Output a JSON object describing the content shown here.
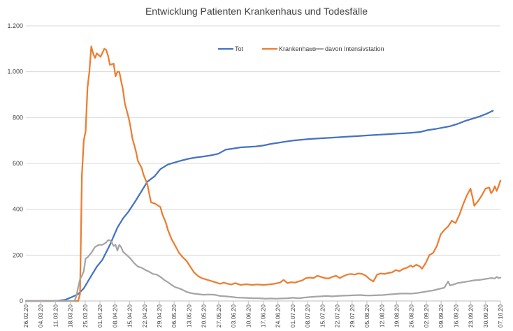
{
  "chart_data": {
    "type": "line",
    "title": "Entwicklung Patienten Krankenhaus und Todesfälle",
    "xlabel": "",
    "ylabel": "",
    "ylim": [
      0,
      1200
    ],
    "y_ticks": [
      0,
      200,
      400,
      600,
      800,
      1000,
      1200
    ],
    "y_tick_labels": [
      "0",
      "200",
      "400",
      "600",
      "800",
      "1.000",
      "1.200"
    ],
    "x_tick_labels": [
      "26.02.20",
      "04.03.20",
      "11.03.20",
      "18.03.20",
      "25.03.20",
      "01.04.20",
      "08.04.20",
      "15.04.20",
      "22.04.20",
      "29.04.20",
      "06.05.20",
      "13.05.20",
      "20.05.20",
      "27.05.20",
      "03.06.20",
      "10.06.20",
      "17.06.20",
      "24.06.20",
      "01.07.20",
      "08.07.20",
      "15.07.20",
      "22.07.20",
      "29.07.20",
      "05.08.20",
      "12.08.20",
      "19.08.20",
      "26.08.20",
      "02.09.20",
      "09.09.20",
      "16.09.20",
      "23.09.20",
      "30.09.20",
      "07.10.20"
    ],
    "grid": true,
    "legend_position": "top-center",
    "series": [
      {
        "name": "Tot",
        "color": "#4472C4",
        "points": [
          [
            0,
            0
          ],
          [
            7,
            0
          ],
          [
            14,
            0
          ],
          [
            17,
            1
          ],
          [
            21,
            5
          ],
          [
            24,
            15
          ],
          [
            28,
            30
          ],
          [
            31,
            55
          ],
          [
            35,
            110
          ],
          [
            38,
            150
          ],
          [
            41,
            180
          ],
          [
            45,
            245
          ],
          [
            49,
            320
          ],
          [
            52,
            360
          ],
          [
            55,
            390
          ],
          [
            59,
            440
          ],
          [
            62,
            480
          ],
          [
            65,
            520
          ],
          [
            69,
            545
          ],
          [
            72,
            575
          ],
          [
            76,
            595
          ],
          [
            80,
            605
          ],
          [
            83,
            612
          ],
          [
            87,
            620
          ],
          [
            91,
            626
          ],
          [
            95,
            630
          ],
          [
            99,
            635
          ],
          [
            103,
            642
          ],
          [
            107,
            660
          ],
          [
            111,
            665
          ],
          [
            115,
            670
          ],
          [
            119,
            672
          ],
          [
            123,
            674
          ],
          [
            127,
            678
          ],
          [
            131,
            685
          ],
          [
            135,
            690
          ],
          [
            139,
            695
          ],
          [
            143,
            700
          ],
          [
            147,
            703
          ],
          [
            151,
            706
          ],
          [
            155,
            708
          ],
          [
            159,
            710
          ],
          [
            163,
            712
          ],
          [
            167,
            714
          ],
          [
            171,
            716
          ],
          [
            175,
            718
          ],
          [
            179,
            720
          ],
          [
            183,
            722
          ],
          [
            187,
            724
          ],
          [
            191,
            726
          ],
          [
            195,
            728
          ],
          [
            199,
            730
          ],
          [
            203,
            732
          ],
          [
            207,
            734
          ],
          [
            211,
            737
          ],
          [
            215,
            745
          ],
          [
            219,
            750
          ],
          [
            223,
            756
          ],
          [
            227,
            762
          ],
          [
            231,
            772
          ],
          [
            235,
            785
          ],
          [
            239,
            795
          ],
          [
            243,
            805
          ],
          [
            247,
            818
          ],
          [
            250,
            830
          ]
        ]
      },
      {
        "name": "Krankenhaus",
        "color": "#ED7D31",
        "points": [
          [
            0,
            0
          ],
          [
            28,
            0
          ],
          [
            29,
            30
          ],
          [
            30,
            550
          ],
          [
            31,
            700
          ],
          [
            32,
            740
          ],
          [
            33,
            930
          ],
          [
            34,
            1000
          ],
          [
            35,
            1110
          ],
          [
            36,
            1080
          ],
          [
            37,
            1060
          ],
          [
            38,
            1080
          ],
          [
            40,
            1065
          ],
          [
            42,
            1100
          ],
          [
            43,
            1095
          ],
          [
            44,
            1070
          ],
          [
            45,
            1030
          ],
          [
            47,
            1035
          ],
          [
            48,
            980
          ],
          [
            49,
            1000
          ],
          [
            50,
            1000
          ],
          [
            51,
            960
          ],
          [
            52,
            920
          ],
          [
            53,
            860
          ],
          [
            55,
            800
          ],
          [
            56,
            760
          ],
          [
            57,
            710
          ],
          [
            59,
            650
          ],
          [
            60,
            610
          ],
          [
            62,
            580
          ],
          [
            63,
            550
          ],
          [
            65,
            510
          ],
          [
            66,
            470
          ],
          [
            67,
            430
          ],
          [
            69,
            425
          ],
          [
            70,
            420
          ],
          [
            72,
            410
          ],
          [
            73,
            380
          ],
          [
            75,
            340
          ],
          [
            76,
            310
          ],
          [
            78,
            270
          ],
          [
            80,
            240
          ],
          [
            82,
            210
          ],
          [
            84,
            190
          ],
          [
            86,
            175
          ],
          [
            88,
            150
          ],
          [
            90,
            125
          ],
          [
            92,
            110
          ],
          [
            94,
            100
          ],
          [
            96,
            95
          ],
          [
            98,
            90
          ],
          [
            100,
            85
          ],
          [
            102,
            80
          ],
          [
            104,
            75
          ],
          [
            106,
            80
          ],
          [
            108,
            75
          ],
          [
            110,
            72
          ],
          [
            112,
            78
          ],
          [
            115,
            70
          ],
          [
            118,
            73
          ],
          [
            121,
            70
          ],
          [
            124,
            72
          ],
          [
            127,
            70
          ],
          [
            130,
            72
          ],
          [
            133,
            75
          ],
          [
            136,
            80
          ],
          [
            138,
            92
          ],
          [
            140,
            78
          ],
          [
            142,
            82
          ],
          [
            144,
            80
          ],
          [
            146,
            85
          ],
          [
            148,
            90
          ],
          [
            150,
            100
          ],
          [
            152,
            102
          ],
          [
            154,
            100
          ],
          [
            156,
            110
          ],
          [
            158,
            105
          ],
          [
            160,
            100
          ],
          [
            162,
            98
          ],
          [
            164,
            105
          ],
          [
            166,
            110
          ],
          [
            168,
            100
          ],
          [
            170,
            108
          ],
          [
            172,
            115
          ],
          [
            174,
            118
          ],
          [
            176,
            115
          ],
          [
            178,
            120
          ],
          [
            180,
            118
          ],
          [
            182,
            110
          ],
          [
            184,
            95
          ],
          [
            186,
            85
          ],
          [
            188,
            115
          ],
          [
            190,
            120
          ],
          [
            192,
            118
          ],
          [
            194,
            122
          ],
          [
            196,
            125
          ],
          [
            198,
            135
          ],
          [
            200,
            130
          ],
          [
            202,
            140
          ],
          [
            204,
            145
          ],
          [
            206,
            155
          ],
          [
            207,
            148
          ],
          [
            209,
            158
          ],
          [
            211,
            150
          ],
          [
            212,
            140
          ],
          [
            214,
            165
          ],
          [
            216,
            200
          ],
          [
            218,
            210
          ],
          [
            220,
            240
          ],
          [
            222,
            290
          ],
          [
            224,
            310
          ],
          [
            226,
            325
          ],
          [
            228,
            350
          ],
          [
            230,
            340
          ],
          [
            232,
            375
          ],
          [
            234,
            420
          ],
          [
            236,
            460
          ],
          [
            238,
            490
          ],
          [
            239,
            455
          ],
          [
            240,
            415
          ],
          [
            242,
            435
          ],
          [
            244,
            460
          ],
          [
            246,
            490
          ],
          [
            248,
            495
          ],
          [
            249,
            470
          ],
          [
            250,
            480
          ],
          [
            251,
            500
          ],
          [
            252,
            480
          ],
          [
            253,
            500
          ],
          [
            254,
            525
          ]
        ]
      },
      {
        "name": "davon Intensivstation",
        "color": "#A5A5A5",
        "points": [
          [
            0,
            0
          ],
          [
            26,
            0
          ],
          [
            27,
            20
          ],
          [
            28,
            60
          ],
          [
            29,
            95
          ],
          [
            30,
            110
          ],
          [
            31,
            130
          ],
          [
            32,
            185
          ],
          [
            33,
            190
          ],
          [
            35,
            210
          ],
          [
            37,
            235
          ],
          [
            39,
            245
          ],
          [
            41,
            245
          ],
          [
            43,
            255
          ],
          [
            44,
            265
          ],
          [
            45,
            265
          ],
          [
            46,
            255
          ],
          [
            47,
            240
          ],
          [
            48,
            245
          ],
          [
            49,
            220
          ],
          [
            50,
            245
          ],
          [
            51,
            235
          ],
          [
            52,
            215
          ],
          [
            54,
            200
          ],
          [
            56,
            185
          ],
          [
            58,
            165
          ],
          [
            60,
            150
          ],
          [
            62,
            145
          ],
          [
            64,
            135
          ],
          [
            66,
            128
          ],
          [
            68,
            118
          ],
          [
            70,
            115
          ],
          [
            72,
            105
          ],
          [
            74,
            92
          ],
          [
            76,
            82
          ],
          [
            78,
            70
          ],
          [
            80,
            60
          ],
          [
            82,
            55
          ],
          [
            84,
            48
          ],
          [
            86,
            40
          ],
          [
            88,
            35
          ],
          [
            90,
            32
          ],
          [
            92,
            30
          ],
          [
            95,
            27
          ],
          [
            98,
            28
          ],
          [
            101,
            27
          ],
          [
            104,
            22
          ],
          [
            107,
            20
          ],
          [
            110,
            18
          ],
          [
            113,
            15
          ],
          [
            116,
            14
          ],
          [
            119,
            13
          ],
          [
            122,
            12
          ],
          [
            125,
            12
          ],
          [
            128,
            10
          ],
          [
            131,
            11
          ],
          [
            134,
            10
          ],
          [
            137,
            11
          ],
          [
            140,
            12
          ],
          [
            143,
            14
          ],
          [
            146,
            12
          ],
          [
            149,
            15
          ],
          [
            152,
            17
          ],
          [
            155,
            19
          ],
          [
            158,
            20
          ],
          [
            161,
            22
          ],
          [
            164,
            20
          ],
          [
            167,
            22
          ],
          [
            170,
            23
          ],
          [
            173,
            24
          ],
          [
            176,
            25
          ],
          [
            179,
            26
          ],
          [
            182,
            24
          ],
          [
            185,
            24
          ],
          [
            188,
            25
          ],
          [
            191,
            26
          ],
          [
            194,
            28
          ],
          [
            197,
            30
          ],
          [
            200,
            32
          ],
          [
            203,
            33
          ],
          [
            206,
            32
          ],
          [
            209,
            34
          ],
          [
            212,
            38
          ],
          [
            215,
            42
          ],
          [
            218,
            46
          ],
          [
            221,
            52
          ],
          [
            224,
            58
          ],
          [
            226,
            85
          ],
          [
            227,
            68
          ],
          [
            229,
            72
          ],
          [
            231,
            78
          ],
          [
            234,
            82
          ],
          [
            237,
            86
          ],
          [
            240,
            90
          ],
          [
            243,
            92
          ],
          [
            246,
            96
          ],
          [
            249,
            100
          ],
          [
            251,
            98
          ],
          [
            252,
            105
          ],
          [
            253,
            100
          ],
          [
            254,
            102
          ]
        ]
      }
    ]
  }
}
